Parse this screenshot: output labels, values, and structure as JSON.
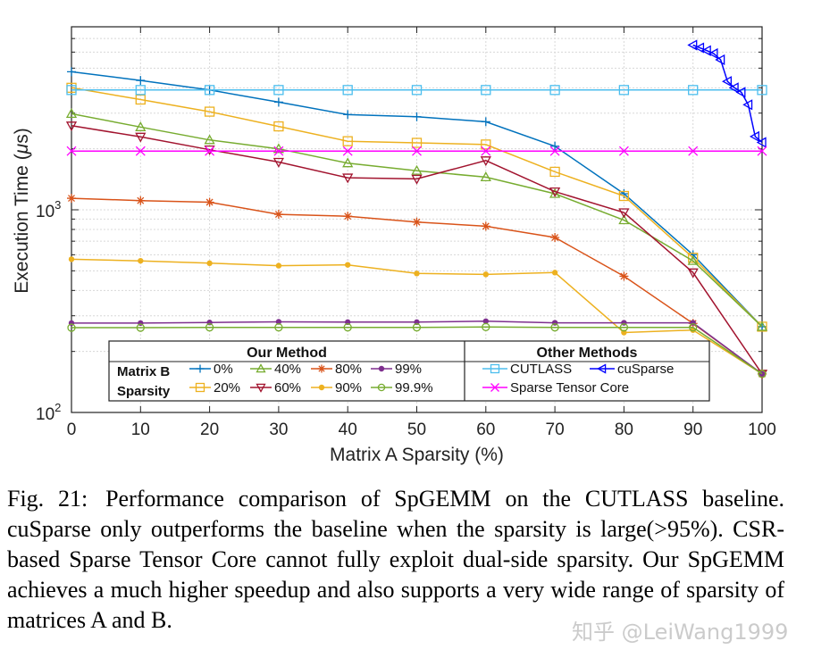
{
  "chart_data": {
    "type": "line",
    "xlabel": "Matrix A Sparsity (%)",
    "ylabel": "Execution Time (μs)",
    "ylabel_prefix": "Execution Time (",
    "ylabel_mu": "μ",
    "ylabel_suffix": "s)",
    "yscale": "log",
    "xlim": [
      0,
      100
    ],
    "ylim": [
      100,
      8000
    ],
    "xticks": [
      0,
      10,
      20,
      30,
      40,
      50,
      60,
      70,
      80,
      90,
      100
    ],
    "xtick_labels": [
      "0",
      "10",
      "20",
      "30",
      "40",
      "50",
      "60",
      "70",
      "80",
      "90",
      "100"
    ],
    "yticks": [
      {
        "value": 100,
        "base": "10",
        "exp": "2"
      },
      {
        "value": 1000,
        "base": "10",
        "exp": "3"
      }
    ],
    "grid": true,
    "legend": {
      "placement": "bottom-center",
      "our_method_title": "Our Method",
      "other_methods_title": "Other Methods",
      "row_label_1": "Matrix B",
      "row_label_2": "Sparsity"
    },
    "series": [
      {
        "name": "0%",
        "group": "our",
        "color": "#0072BD",
        "marker": "plus",
        "x": [
          0,
          10,
          20,
          30,
          40,
          50,
          60,
          70,
          80,
          90,
          100
        ],
        "values": [
          4800,
          4350,
          3900,
          3400,
          2950,
          2880,
          2720,
          2060,
          1200,
          600,
          265
        ]
      },
      {
        "name": "20%",
        "group": "our",
        "color": "#EDB120",
        "marker": "square",
        "x": [
          0,
          10,
          20,
          30,
          40,
          50,
          60,
          70,
          80,
          90,
          100
        ],
        "values": [
          4000,
          3500,
          3050,
          2580,
          2180,
          2140,
          2100,
          1540,
          1170,
          580,
          265
        ]
      },
      {
        "name": "40%",
        "group": "our",
        "color": "#77AC30",
        "marker": "triangle-up",
        "x": [
          0,
          10,
          20,
          30,
          40,
          50,
          60,
          70,
          80,
          90,
          100
        ],
        "values": [
          2980,
          2560,
          2210,
          2000,
          1700,
          1560,
          1450,
          1200,
          890,
          560,
          265
        ]
      },
      {
        "name": "60%",
        "group": "our",
        "color": "#A2142F",
        "marker": "triangle-down",
        "x": [
          0,
          10,
          20,
          30,
          40,
          50,
          60,
          70,
          80,
          90,
          100
        ],
        "values": [
          2600,
          2290,
          1980,
          1720,
          1440,
          1420,
          1750,
          1230,
          970,
          490,
          155
        ]
      },
      {
        "name": "80%",
        "group": "our",
        "color": "#D95319",
        "marker": "asterisk",
        "x": [
          0,
          10,
          20,
          30,
          40,
          50,
          60,
          70,
          80,
          90,
          100
        ],
        "values": [
          1140,
          1110,
          1090,
          950,
          930,
          870,
          830,
          730,
          470,
          275,
          155
        ]
      },
      {
        "name": "90%",
        "group": "our",
        "color": "#EDB120",
        "marker": "dot",
        "x": [
          0,
          10,
          20,
          30,
          40,
          50,
          60,
          70,
          80,
          90,
          100
        ],
        "values": [
          570,
          560,
          545,
          530,
          535,
          485,
          480,
          490,
          248,
          255,
          155
        ]
      },
      {
        "name": "99%",
        "group": "our",
        "color": "#7E2F8E",
        "marker": "dot",
        "x": [
          0,
          10,
          20,
          30,
          40,
          50,
          60,
          70,
          80,
          90,
          100
        ],
        "values": [
          276,
          276,
          278,
          280,
          279,
          279,
          282,
          277,
          277,
          277,
          155
        ]
      },
      {
        "name": "99.9%",
        "group": "our",
        "color": "#77AC30",
        "marker": "circle",
        "x": [
          0,
          10,
          20,
          30,
          40,
          50,
          60,
          70,
          80,
          90,
          100
        ],
        "values": [
          262,
          262,
          263,
          263,
          263,
          263,
          264,
          263,
          263,
          263,
          155
        ]
      },
      {
        "name": "CUTLASS",
        "group": "other",
        "color": "#4DBEEE",
        "marker": "square",
        "x": [
          0,
          10,
          20,
          30,
          40,
          50,
          60,
          70,
          80,
          90,
          100
        ],
        "values": [
          3900,
          3900,
          3900,
          3900,
          3900,
          3900,
          3900,
          3900,
          3900,
          3900,
          3900
        ]
      },
      {
        "name": "cuSparse",
        "group": "other",
        "color": "#0000FF",
        "marker": "triangle-left",
        "x": [
          90,
          91,
          92,
          93,
          94,
          95,
          96,
          97,
          98,
          99,
          100
        ],
        "values": [
          6500,
          6300,
          6100,
          5900,
          5500,
          4300,
          4000,
          3800,
          3300,
          2300,
          2150
        ]
      },
      {
        "name": "Sparse Tensor Core",
        "group": "other",
        "color": "#FF00FF",
        "marker": "x",
        "x": [
          0,
          10,
          20,
          30,
          40,
          50,
          60,
          70,
          80,
          90,
          100
        ],
        "values": [
          1950,
          1950,
          1950,
          1950,
          1950,
          1950,
          1950,
          1950,
          1950,
          1950,
          1950
        ]
      }
    ]
  },
  "caption": {
    "label": "Fig. 21:",
    "text": "Performance comparison of SpGEMM on the CUTLASS baseline. cuSparse only outperforms the baseline when the sparsity is large(>95%). CSR-based Sparse Tensor Core cannot fully exploit dual-side sparsity. Our SpGEMM achieves a much higher speedup and also supports a very wide range of sparsity of matrices A and B."
  },
  "watermark": "知乎 @LeiWang1999"
}
